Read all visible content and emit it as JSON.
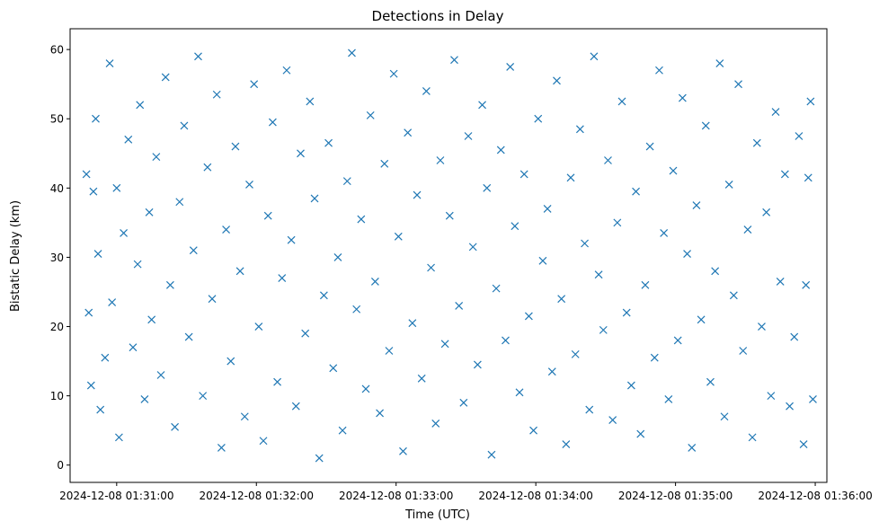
{
  "chart_data": {
    "type": "scatter",
    "title": "Detections in Delay",
    "xlabel": "Time (UTC)",
    "ylabel": "Bistatic Delay (km)",
    "marker": "x",
    "color": "#1f77b4",
    "grid": false,
    "xlim": [
      "2024-12-08 01:30:40",
      "2024-12-08 01:36:05"
    ],
    "ylim": [
      -2.5,
      63
    ],
    "x_ticks": [
      "2024-12-08 01:31:00",
      "2024-12-08 01:32:00",
      "2024-12-08 01:33:00",
      "2024-12-08 01:34:00",
      "2024-12-08 01:35:00",
      "2024-12-08 01:36:00"
    ],
    "y_ticks": [
      0,
      10,
      20,
      30,
      40,
      50,
      60
    ],
    "series": [
      {
        "points": [
          [
            "2024-12-08 01:30:47",
            42.0
          ],
          [
            "2024-12-08 01:30:48",
            22.0
          ],
          [
            "2024-12-08 01:30:49",
            11.5
          ],
          [
            "2024-12-08 01:30:50",
            39.5
          ],
          [
            "2024-12-08 01:30:51",
            50.0
          ],
          [
            "2024-12-08 01:30:52",
            30.5
          ],
          [
            "2024-12-08 01:30:53",
            8.0
          ],
          [
            "2024-12-08 01:30:55",
            15.5
          ],
          [
            "2024-12-08 01:30:57",
            58.0
          ],
          [
            "2024-12-08 01:30:58",
            23.5
          ],
          [
            "2024-12-08 01:31:00",
            40.0
          ],
          [
            "2024-12-08 01:31:01",
            4.0
          ],
          [
            "2024-12-08 01:31:03",
            33.5
          ],
          [
            "2024-12-08 01:31:05",
            47.0
          ],
          [
            "2024-12-08 01:31:07",
            17.0
          ],
          [
            "2024-12-08 01:31:09",
            29.0
          ],
          [
            "2024-12-08 01:31:10",
            52.0
          ],
          [
            "2024-12-08 01:31:12",
            9.5
          ],
          [
            "2024-12-08 01:31:14",
            36.5
          ],
          [
            "2024-12-08 01:31:15",
            21.0
          ],
          [
            "2024-12-08 01:31:17",
            44.5
          ],
          [
            "2024-12-08 01:31:19",
            13.0
          ],
          [
            "2024-12-08 01:31:21",
            56.0
          ],
          [
            "2024-12-08 01:31:23",
            26.0
          ],
          [
            "2024-12-08 01:31:25",
            5.5
          ],
          [
            "2024-12-08 01:31:27",
            38.0
          ],
          [
            "2024-12-08 01:31:29",
            49.0
          ],
          [
            "2024-12-08 01:31:31",
            18.5
          ],
          [
            "2024-12-08 01:31:33",
            31.0
          ],
          [
            "2024-12-08 01:31:35",
            59.0
          ],
          [
            "2024-12-08 01:31:37",
            10.0
          ],
          [
            "2024-12-08 01:31:39",
            43.0
          ],
          [
            "2024-12-08 01:31:41",
            24.0
          ],
          [
            "2024-12-08 01:31:43",
            53.5
          ],
          [
            "2024-12-08 01:31:45",
            2.5
          ],
          [
            "2024-12-08 01:31:47",
            34.0
          ],
          [
            "2024-12-08 01:31:49",
            15.0
          ],
          [
            "2024-12-08 01:31:51",
            46.0
          ],
          [
            "2024-12-08 01:31:53",
            28.0
          ],
          [
            "2024-12-08 01:31:55",
            7.0
          ],
          [
            "2024-12-08 01:31:57",
            40.5
          ],
          [
            "2024-12-08 01:31:59",
            55.0
          ],
          [
            "2024-12-08 01:32:01",
            20.0
          ],
          [
            "2024-12-08 01:32:03",
            3.5
          ],
          [
            "2024-12-08 01:32:05",
            36.0
          ],
          [
            "2024-12-08 01:32:07",
            49.5
          ],
          [
            "2024-12-08 01:32:09",
            12.0
          ],
          [
            "2024-12-08 01:32:11",
            27.0
          ],
          [
            "2024-12-08 01:32:13",
            57.0
          ],
          [
            "2024-12-08 01:32:15",
            32.5
          ],
          [
            "2024-12-08 01:32:17",
            8.5
          ],
          [
            "2024-12-08 01:32:19",
            45.0
          ],
          [
            "2024-12-08 01:32:21",
            19.0
          ],
          [
            "2024-12-08 01:32:23",
            52.5
          ],
          [
            "2024-12-08 01:32:25",
            38.5
          ],
          [
            "2024-12-08 01:32:27",
            1.0
          ],
          [
            "2024-12-08 01:32:29",
            24.5
          ],
          [
            "2024-12-08 01:32:31",
            46.5
          ],
          [
            "2024-12-08 01:32:33",
            14.0
          ],
          [
            "2024-12-08 01:32:35",
            30.0
          ],
          [
            "2024-12-08 01:32:37",
            5.0
          ],
          [
            "2024-12-08 01:32:39",
            41.0
          ],
          [
            "2024-12-08 01:32:41",
            59.5
          ],
          [
            "2024-12-08 01:32:43",
            22.5
          ],
          [
            "2024-12-08 01:32:45",
            35.5
          ],
          [
            "2024-12-08 01:32:47",
            11.0
          ],
          [
            "2024-12-08 01:32:49",
            50.5
          ],
          [
            "2024-12-08 01:32:51",
            26.5
          ],
          [
            "2024-12-08 01:32:53",
            7.5
          ],
          [
            "2024-12-08 01:32:55",
            43.5
          ],
          [
            "2024-12-08 01:32:57",
            16.5
          ],
          [
            "2024-12-08 01:32:59",
            56.5
          ],
          [
            "2024-12-08 01:33:01",
            33.0
          ],
          [
            "2024-12-08 01:33:03",
            2.0
          ],
          [
            "2024-12-08 01:33:05",
            48.0
          ],
          [
            "2024-12-08 01:33:07",
            20.5
          ],
          [
            "2024-12-08 01:33:09",
            39.0
          ],
          [
            "2024-12-08 01:33:11",
            12.5
          ],
          [
            "2024-12-08 01:33:13",
            54.0
          ],
          [
            "2024-12-08 01:33:15",
            28.5
          ],
          [
            "2024-12-08 01:33:17",
            6.0
          ],
          [
            "2024-12-08 01:33:19",
            44.0
          ],
          [
            "2024-12-08 01:33:21",
            17.5
          ],
          [
            "2024-12-08 01:33:23",
            36.0
          ],
          [
            "2024-12-08 01:33:25",
            58.5
          ],
          [
            "2024-12-08 01:33:27",
            23.0
          ],
          [
            "2024-12-08 01:33:29",
            9.0
          ],
          [
            "2024-12-08 01:33:31",
            47.5
          ],
          [
            "2024-12-08 01:33:33",
            31.5
          ],
          [
            "2024-12-08 01:33:35",
            14.5
          ],
          [
            "2024-12-08 01:33:37",
            52.0
          ],
          [
            "2024-12-08 01:33:39",
            40.0
          ],
          [
            "2024-12-08 01:33:41",
            1.5
          ],
          [
            "2024-12-08 01:33:43",
            25.5
          ],
          [
            "2024-12-08 01:33:45",
            45.5
          ],
          [
            "2024-12-08 01:33:47",
            18.0
          ],
          [
            "2024-12-08 01:33:49",
            57.5
          ],
          [
            "2024-12-08 01:33:51",
            34.5
          ],
          [
            "2024-12-08 01:33:53",
            10.5
          ],
          [
            "2024-12-08 01:33:55",
            42.0
          ],
          [
            "2024-12-08 01:33:57",
            21.5
          ],
          [
            "2024-12-08 01:33:59",
            5.0
          ],
          [
            "2024-12-08 01:34:01",
            50.0
          ],
          [
            "2024-12-08 01:34:03",
            29.5
          ],
          [
            "2024-12-08 01:34:05",
            37.0
          ],
          [
            "2024-12-08 01:34:07",
            13.5
          ],
          [
            "2024-12-08 01:34:09",
            55.5
          ],
          [
            "2024-12-08 01:34:11",
            24.0
          ],
          [
            "2024-12-08 01:34:13",
            3.0
          ],
          [
            "2024-12-08 01:34:15",
            41.5
          ],
          [
            "2024-12-08 01:34:17",
            16.0
          ],
          [
            "2024-12-08 01:34:19",
            48.5
          ],
          [
            "2024-12-08 01:34:21",
            32.0
          ],
          [
            "2024-12-08 01:34:23",
            8.0
          ],
          [
            "2024-12-08 01:34:25",
            59.0
          ],
          [
            "2024-12-08 01:34:27",
            27.5
          ],
          [
            "2024-12-08 01:34:29",
            19.5
          ],
          [
            "2024-12-08 01:34:31",
            44.0
          ],
          [
            "2024-12-08 01:34:33",
            6.5
          ],
          [
            "2024-12-08 01:34:35",
            35.0
          ],
          [
            "2024-12-08 01:34:37",
            52.5
          ],
          [
            "2024-12-08 01:34:39",
            22.0
          ],
          [
            "2024-12-08 01:34:41",
            11.5
          ],
          [
            "2024-12-08 01:34:43",
            39.5
          ],
          [
            "2024-12-08 01:34:45",
            4.5
          ],
          [
            "2024-12-08 01:34:47",
            26.0
          ],
          [
            "2024-12-08 01:34:49",
            46.0
          ],
          [
            "2024-12-08 01:34:51",
            15.5
          ],
          [
            "2024-12-08 01:34:53",
            57.0
          ],
          [
            "2024-12-08 01:34:55",
            33.5
          ],
          [
            "2024-12-08 01:34:57",
            9.5
          ],
          [
            "2024-12-08 01:34:59",
            42.5
          ],
          [
            "2024-12-08 01:35:01",
            18.0
          ],
          [
            "2024-12-08 01:35:03",
            53.0
          ],
          [
            "2024-12-08 01:35:05",
            30.5
          ],
          [
            "2024-12-08 01:35:07",
            2.5
          ],
          [
            "2024-12-08 01:35:09",
            37.5
          ],
          [
            "2024-12-08 01:35:11",
            21.0
          ],
          [
            "2024-12-08 01:35:13",
            49.0
          ],
          [
            "2024-12-08 01:35:15",
            12.0
          ],
          [
            "2024-12-08 01:35:17",
            28.0
          ],
          [
            "2024-12-08 01:35:19",
            58.0
          ],
          [
            "2024-12-08 01:35:21",
            7.0
          ],
          [
            "2024-12-08 01:35:23",
            40.5
          ],
          [
            "2024-12-08 01:35:25",
            24.5
          ],
          [
            "2024-12-08 01:35:27",
            55.0
          ],
          [
            "2024-12-08 01:35:29",
            16.5
          ],
          [
            "2024-12-08 01:35:31",
            34.0
          ],
          [
            "2024-12-08 01:35:33",
            4.0
          ],
          [
            "2024-12-08 01:35:35",
            46.5
          ],
          [
            "2024-12-08 01:35:37",
            20.0
          ],
          [
            "2024-12-08 01:35:39",
            36.5
          ],
          [
            "2024-12-08 01:35:41",
            10.0
          ],
          [
            "2024-12-08 01:35:43",
            51.0
          ],
          [
            "2024-12-08 01:35:45",
            26.5
          ],
          [
            "2024-12-08 01:35:47",
            42.0
          ],
          [
            "2024-12-08 01:35:49",
            8.5
          ],
          [
            "2024-12-08 01:35:51",
            18.5
          ],
          [
            "2024-12-08 01:35:53",
            47.5
          ],
          [
            "2024-12-08 01:35:55",
            3.0
          ],
          [
            "2024-12-08 01:35:56",
            26.0
          ],
          [
            "2024-12-08 01:35:57",
            41.5
          ],
          [
            "2024-12-08 01:35:58",
            52.5
          ],
          [
            "2024-12-08 01:35:59",
            9.5
          ]
        ]
      }
    ]
  }
}
